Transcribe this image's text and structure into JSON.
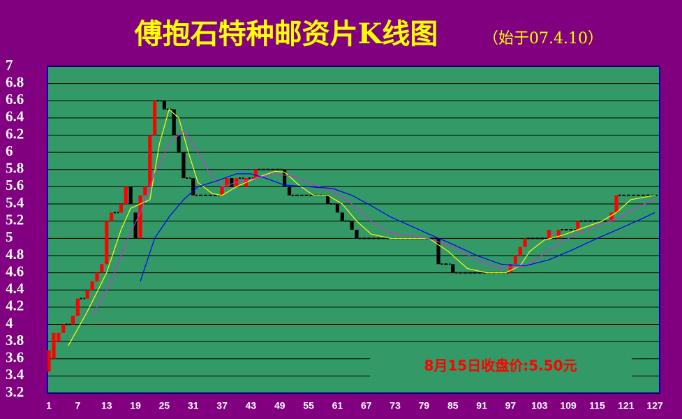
{
  "chart_data": {
    "type": "candlestick",
    "title": "傅抱石特种邮资片K线图",
    "subtitle": "（始于07.4.10）",
    "annotation": "8月15日收盘价:5.50元",
    "x": [
      1,
      2,
      3,
      4,
      5,
      6,
      7,
      8,
      9,
      10,
      11,
      12,
      13,
      14,
      15,
      16,
      17,
      18,
      19,
      20,
      21,
      22,
      23,
      24,
      25,
      26,
      27,
      28,
      29,
      30,
      31,
      32,
      33,
      34,
      35,
      36,
      37,
      38,
      39,
      40,
      41,
      42,
      43,
      44,
      45,
      46,
      47,
      48,
      49,
      50,
      51,
      52,
      53,
      54,
      55,
      56,
      57,
      58,
      59,
      60,
      61,
      62,
      63,
      64,
      65,
      66,
      67,
      68,
      69,
      70,
      71,
      72,
      73,
      74,
      75,
      76,
      77,
      78,
      79,
      80,
      81,
      82,
      83,
      84,
      85,
      86,
      87,
      88,
      89,
      90,
      91,
      92,
      93,
      94,
      95,
      96,
      97,
      98,
      99,
      100,
      101,
      102,
      103,
      104,
      105,
      106,
      107,
      108,
      109,
      110,
      111,
      112,
      113,
      114,
      115,
      116,
      117,
      118,
      119,
      120,
      121,
      122,
      123,
      124,
      125,
      126,
      127
    ],
    "open": [
      3.45,
      3.6,
      3.8,
      3.9,
      4.0,
      4.0,
      4.1,
      4.3,
      4.3,
      4.4,
      4.5,
      4.6,
      4.7,
      5.2,
      5.3,
      5.3,
      5.4,
      5.6,
      5.3,
      5.0,
      5.5,
      5.6,
      6.2,
      6.6,
      6.6,
      6.5,
      6.5,
      6.2,
      6.0,
      5.7,
      5.7,
      5.5,
      5.5,
      5.5,
      5.5,
      5.5,
      5.5,
      5.6,
      5.7,
      5.6,
      5.7,
      5.6,
      5.7,
      5.7,
      5.8,
      5.8,
      5.8,
      5.8,
      5.8,
      5.8,
      5.6,
      5.5,
      5.5,
      5.5,
      5.5,
      5.5,
      5.5,
      5.5,
      5.5,
      5.4,
      5.4,
      5.3,
      5.2,
      5.2,
      5.1,
      5.0,
      5.0,
      5.0,
      5.0,
      5.0,
      5.0,
      5.0,
      5.0,
      5.0,
      5.0,
      5.0,
      5.0,
      5.0,
      5.0,
      5.0,
      5.0,
      5.0,
      4.7,
      4.7,
      4.7,
      4.6,
      4.6,
      4.6,
      4.6,
      4.6,
      4.6,
      4.6,
      4.6,
      4.6,
      4.6,
      4.6,
      4.6,
      4.7,
      4.8,
      4.9,
      5.0,
      5.0,
      5.0,
      5.0,
      5.0,
      5.0,
      5.0,
      5.1,
      5.1,
      5.1,
      5.1,
      5.2,
      5.2,
      5.2,
      5.2,
      5.2,
      5.2,
      5.2,
      5.3,
      5.5,
      5.5,
      5.5,
      5.5,
      5.5,
      5.5,
      5.5,
      5.5
    ],
    "close": [
      3.7,
      3.9,
      3.9,
      4.0,
      4.0,
      4.1,
      4.3,
      4.3,
      4.4,
      4.5,
      4.6,
      4.7,
      5.2,
      5.3,
      5.3,
      5.4,
      5.6,
      5.4,
      5.0,
      5.5,
      5.6,
      6.2,
      6.6,
      6.6,
      6.5,
      6.5,
      6.2,
      6.0,
      5.7,
      5.7,
      5.5,
      5.5,
      5.5,
      5.5,
      5.5,
      5.5,
      5.6,
      5.7,
      5.6,
      5.7,
      5.7,
      5.7,
      5.7,
      5.8,
      5.8,
      5.8,
      5.8,
      5.8,
      5.8,
      5.6,
      5.5,
      5.5,
      5.5,
      5.5,
      5.5,
      5.5,
      5.5,
      5.5,
      5.4,
      5.4,
      5.3,
      5.2,
      5.2,
      5.1,
      5.0,
      5.0,
      5.0,
      5.0,
      5.0,
      5.0,
      5.0,
      5.0,
      5.0,
      5.0,
      5.0,
      5.0,
      5.0,
      5.0,
      5.0,
      5.0,
      5.0,
      4.7,
      4.7,
      4.7,
      4.6,
      4.6,
      4.6,
      4.6,
      4.6,
      4.6,
      4.6,
      4.6,
      4.6,
      4.6,
      4.6,
      4.6,
      4.7,
      4.8,
      4.9,
      5.0,
      5.0,
      5.0,
      5.0,
      5.0,
      5.1,
      5.0,
      5.1,
      5.1,
      5.1,
      5.1,
      5.2,
      5.2,
      5.2,
      5.2,
      5.2,
      5.2,
      5.2,
      5.3,
      5.5,
      5.5,
      5.5,
      5.5,
      5.5,
      5.5,
      5.5,
      5.5,
      5.5
    ],
    "up_color": "#ff0000",
    "down_color": "#000000",
    "lines": [
      {
        "color": "#ffff00",
        "x": [
          5,
          9,
          13,
          16,
          18,
          20,
          22,
          24,
          26,
          28,
          30,
          32,
          35,
          37,
          40,
          44,
          48,
          50,
          53,
          56,
          59,
          62,
          65,
          68,
          72,
          80,
          84,
          88,
          92,
          96,
          99,
          101,
          104,
          108,
          112,
          116,
          119,
          122,
          127
        ],
        "values": [
          3.75,
          4.15,
          4.6,
          5.1,
          5.35,
          5.4,
          5.45,
          6.1,
          6.5,
          6.4,
          6.0,
          5.65,
          5.52,
          5.5,
          5.6,
          5.7,
          5.78,
          5.77,
          5.62,
          5.5,
          5.5,
          5.4,
          5.2,
          5.05,
          5.0,
          5.0,
          4.85,
          4.65,
          4.6,
          4.6,
          4.68,
          4.85,
          4.98,
          5.04,
          5.12,
          5.2,
          5.3,
          5.45,
          5.5
        ]
      },
      {
        "color": "#cc33cc",
        "x": [
          10,
          14,
          17,
          20,
          23,
          26,
          29,
          31,
          34,
          37,
          40,
          44,
          48,
          52,
          56,
          60,
          64,
          68,
          72,
          80,
          85,
          90,
          95,
          100,
          104,
          108,
          112,
          116,
          120,
          124,
          127
        ],
        "values": [
          4.1,
          4.5,
          4.95,
          5.3,
          5.75,
          6.1,
          6.25,
          6.1,
          5.8,
          5.6,
          5.65,
          5.7,
          5.75,
          5.72,
          5.62,
          5.55,
          5.4,
          5.2,
          5.06,
          5.0,
          4.9,
          4.75,
          4.65,
          4.68,
          4.82,
          4.97,
          5.08,
          5.17,
          5.25,
          5.38,
          5.45
        ]
      },
      {
        "color": "#0000ff",
        "x": [
          20,
          23,
          26,
          29,
          32,
          36,
          40,
          43,
          46,
          50,
          55,
          60,
          64,
          68,
          72,
          76,
          80,
          85,
          90,
          95,
          100,
          105,
          110,
          115,
          120,
          124,
          127
        ],
        "values": [
          4.5,
          5.0,
          5.25,
          5.45,
          5.6,
          5.67,
          5.75,
          5.75,
          5.7,
          5.62,
          5.6,
          5.58,
          5.5,
          5.38,
          5.25,
          5.15,
          5.05,
          4.93,
          4.8,
          4.7,
          4.68,
          4.75,
          4.87,
          5.0,
          5.12,
          5.22,
          5.3
        ]
      }
    ],
    "xlim": [
      0.7,
      128
    ],
    "xticks": [
      1,
      7,
      13,
      19,
      25,
      31,
      37,
      43,
      49,
      55,
      61,
      67,
      73,
      79,
      85,
      91,
      97,
      103,
      109,
      115,
      121,
      127
    ],
    "ylim": [
      3.2,
      7
    ],
    "yticks": [
      3.2,
      3.4,
      3.6,
      3.8,
      4,
      4.2,
      4.4,
      4.6,
      4.8,
      5,
      5.2,
      5.4,
      5.6,
      5.8,
      6,
      6.2,
      6.4,
      6.6,
      6.8,
      7
    ],
    "grid": true
  }
}
